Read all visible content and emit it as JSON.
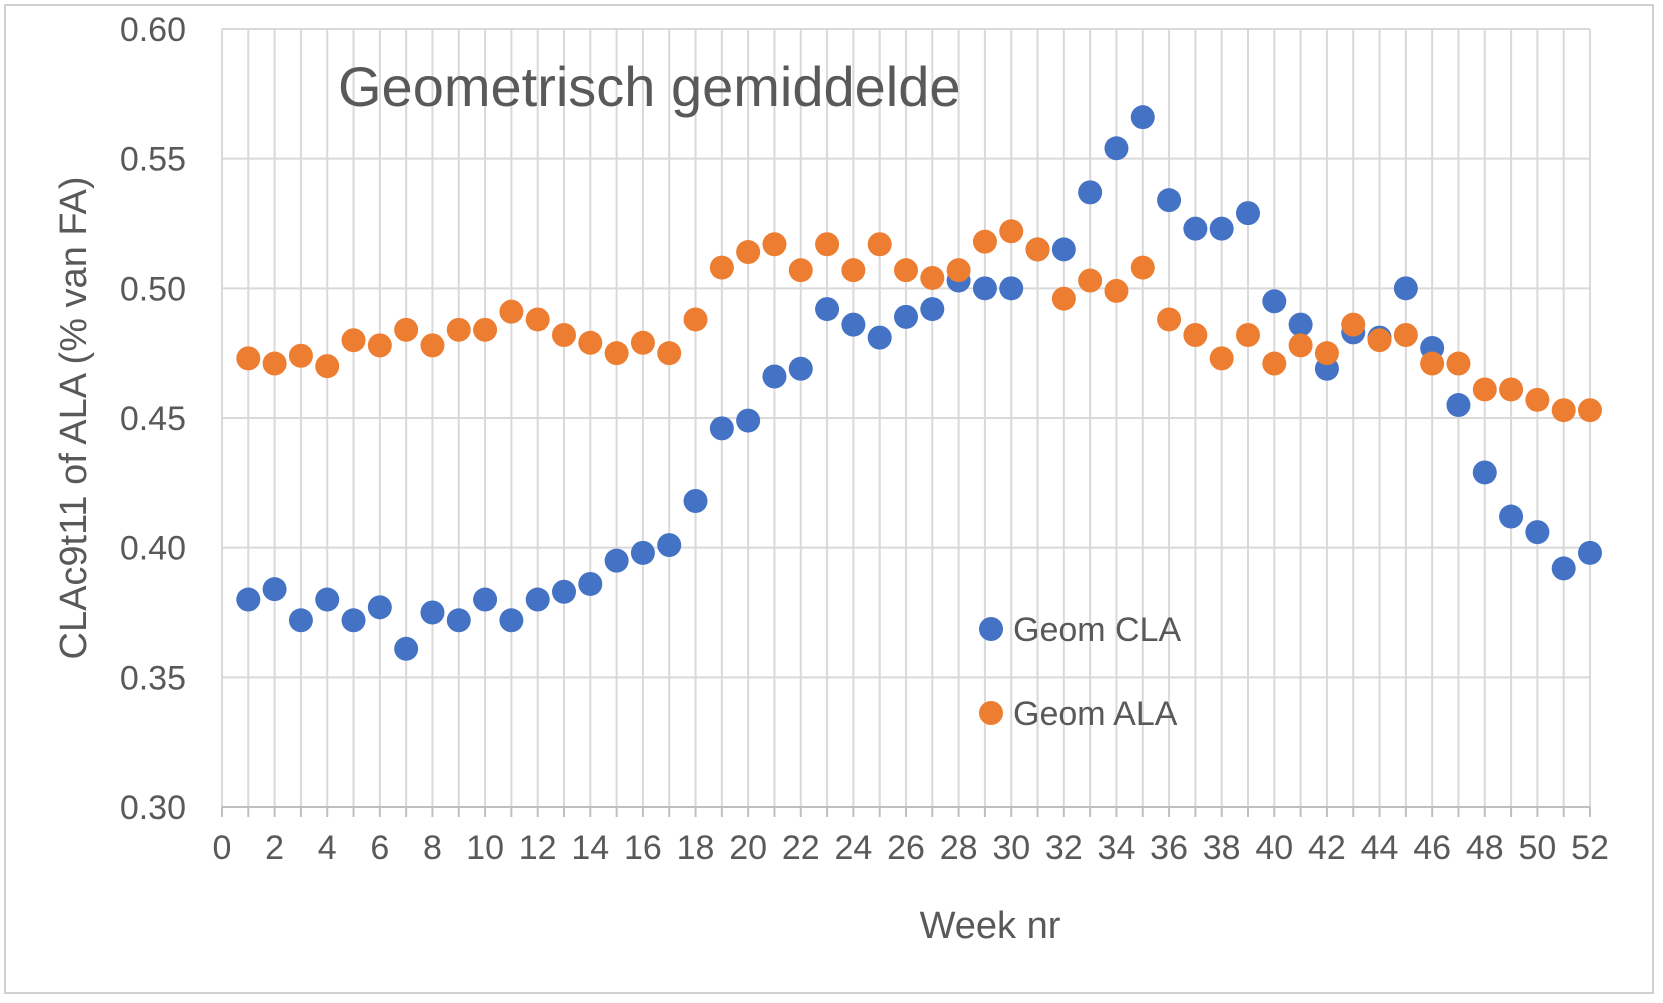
{
  "chart_data": {
    "type": "scatter",
    "title": "Geometrisch gemiddelde",
    "xlabel": "Week nr",
    "ylabel": "CLAc9t11 of ALA (% van FA)",
    "xlim": [
      0,
      52
    ],
    "ylim": [
      0.3,
      0.6
    ],
    "x_ticks": [
      "0",
      "2",
      "4",
      "6",
      "8",
      "10",
      "12",
      "14",
      "16",
      "18",
      "20",
      "22",
      "24",
      "26",
      "28",
      "30",
      "32",
      "34",
      "36",
      "38",
      "40",
      "42",
      "44",
      "46",
      "48",
      "50",
      "52"
    ],
    "y_ticks": [
      "0.30",
      "0.35",
      "0.40",
      "0.45",
      "0.50",
      "0.55",
      "0.60"
    ],
    "grid": true,
    "legend_position": "inside right",
    "x": [
      1,
      2,
      3,
      4,
      5,
      6,
      7,
      8,
      9,
      10,
      11,
      12,
      13,
      14,
      15,
      16,
      17,
      18,
      19,
      20,
      21,
      22,
      23,
      24,
      25,
      26,
      27,
      28,
      29,
      30,
      31,
      32,
      33,
      34,
      35,
      36,
      37,
      38,
      39,
      40,
      41,
      42,
      43,
      44,
      45,
      46,
      47,
      48,
      49,
      50,
      51,
      52
    ],
    "series": [
      {
        "name": "Geom CLA",
        "color": "#4472c4",
        "trendline": "dotted polynomial",
        "values": [
          0.38,
          0.384,
          0.372,
          0.38,
          0.372,
          0.377,
          0.361,
          0.375,
          0.372,
          0.38,
          0.372,
          0.38,
          0.383,
          0.386,
          0.395,
          0.398,
          0.401,
          0.418,
          0.446,
          0.449,
          0.466,
          0.469,
          0.492,
          0.486,
          0.481,
          0.489,
          0.492,
          0.503,
          0.5,
          0.5,
          0.515,
          0.515,
          0.537,
          0.554,
          0.566,
          0.534,
          0.523,
          0.523,
          0.529,
          0.495,
          0.486,
          0.469,
          0.483,
          0.481,
          0.5,
          0.477,
          0.455,
          0.429,
          0.412,
          0.406,
          0.392,
          0.398
        ]
      },
      {
        "name": "Geom ALA",
        "color": "#ed7d31",
        "trendline": "dotted polynomial",
        "values": [
          0.473,
          0.471,
          0.474,
          0.47,
          0.48,
          0.478,
          0.484,
          0.478,
          0.484,
          0.484,
          0.491,
          0.488,
          0.482,
          0.479,
          0.475,
          0.479,
          0.475,
          0.488,
          0.508,
          0.514,
          0.517,
          0.507,
          0.517,
          0.507,
          0.517,
          0.507,
          0.504,
          0.507,
          0.518,
          0.522,
          0.515,
          0.496,
          0.503,
          0.499,
          0.508,
          0.488,
          0.482,
          0.473,
          0.482,
          0.471,
          0.478,
          0.475,
          0.486,
          0.48,
          0.482,
          0.471,
          0.471,
          0.461,
          0.461,
          0.457,
          0.453,
          0.453
        ]
      }
    ]
  }
}
